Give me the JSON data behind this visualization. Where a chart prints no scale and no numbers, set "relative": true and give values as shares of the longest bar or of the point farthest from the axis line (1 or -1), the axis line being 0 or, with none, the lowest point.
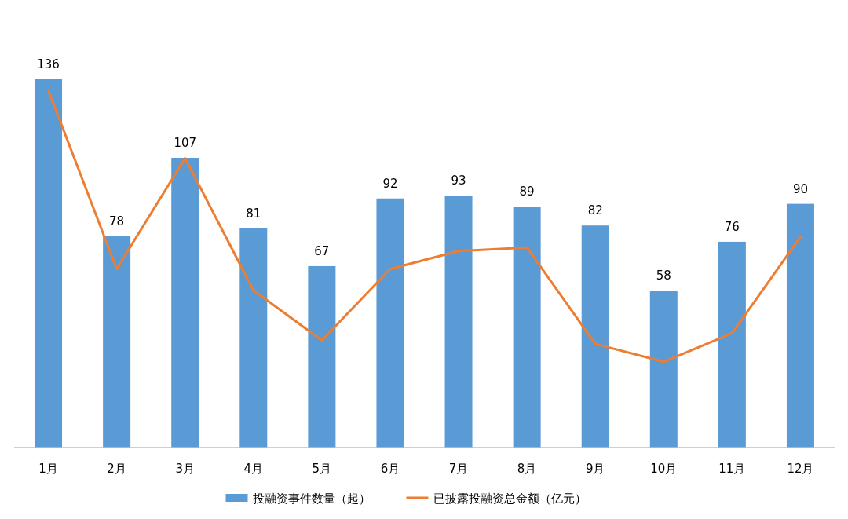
{
  "chart_data": [
    {
      "type": "bar",
      "categories": [
        "1月",
        "2月",
        "3月",
        "4月",
        "5月",
        "6月",
        "7月",
        "8月",
        "9月",
        "10月",
        "11月",
        "12月"
      ],
      "series": [
        {
          "name": "投融资事件数量（起）",
          "color": "#5b9bd5",
          "values": [
            136,
            78,
            107,
            81,
            67,
            92,
            93,
            89,
            82,
            58,
            76,
            90
          ]
        }
      ],
      "data_labels": true,
      "grid": false,
      "legend": "bottom"
    },
    {
      "type": "line",
      "relative": true,
      "categories": [
        null,
        null,
        null,
        null,
        null,
        null,
        null,
        null,
        null,
        null,
        null,
        null
      ],
      "series": [
        {
          "name": "已披露投融资总金额（亿元）",
          "color": "#ed7d31",
          "values": [
            1,
            0.5,
            0.81,
            0.44,
            0.3,
            0.5,
            0.55,
            0.56,
            0.29,
            0.24,
            0.32,
            0.59
          ]
        }
      ],
      "grid": false,
      "legend": "bottom",
      "marker": "none",
      "line_style": "solid"
    }
  ]
}
